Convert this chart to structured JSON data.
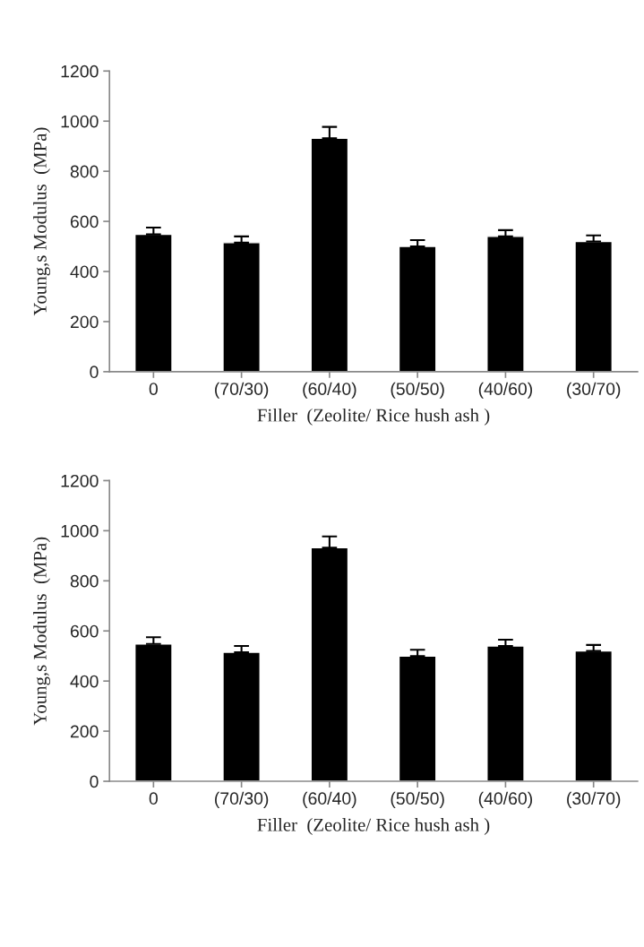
{
  "chart_data": [
    {
      "type": "bar",
      "xlabel": "Filler  (Zeolite/ Rice hush ash )",
      "ylabel": "Young,s Modulus  (MPa)",
      "categories": [
        "0",
        "(70/30)",
        "(60/40)",
        "(50/50)",
        "(40/60)",
        "(30/70)"
      ],
      "values": [
        548,
        515,
        932,
        500,
        540,
        520
      ],
      "color": "#000000",
      "errors": [
        [
          548,
          575
        ],
        [
          515,
          540
        ],
        [
          932,
          977
        ],
        [
          500,
          525
        ],
        [
          540,
          565
        ],
        [
          520,
          544
        ]
      ],
      "ylim": [
        0,
        1200
      ],
      "yticks": [
        0,
        200,
        400,
        600,
        800,
        1000,
        1200
      ],
      "grid": false,
      "legend": false
    },
    {
      "type": "bar",
      "xlabel": "Filler  (Zeolite/ Rice hush ash )",
      "ylabel": "Young,s Modulus  (MPa)",
      "categories": [
        "0",
        "(70/30)",
        "(60/40)",
        "(50/50)",
        "(40/60)",
        "(30/70)"
      ],
      "values": [
        548,
        515,
        932,
        500,
        540,
        520
      ],
      "color": "#000000",
      "errors": [
        [
          548,
          575
        ],
        [
          515,
          540
        ],
        [
          932,
          977
        ],
        [
          500,
          525
        ],
        [
          540,
          565
        ],
        [
          520,
          544
        ]
      ],
      "ylim": [
        0,
        1200
      ],
      "yticks": [
        0,
        200,
        400,
        600,
        800,
        1000,
        1200
      ],
      "grid": false,
      "legend": false
    }
  ]
}
